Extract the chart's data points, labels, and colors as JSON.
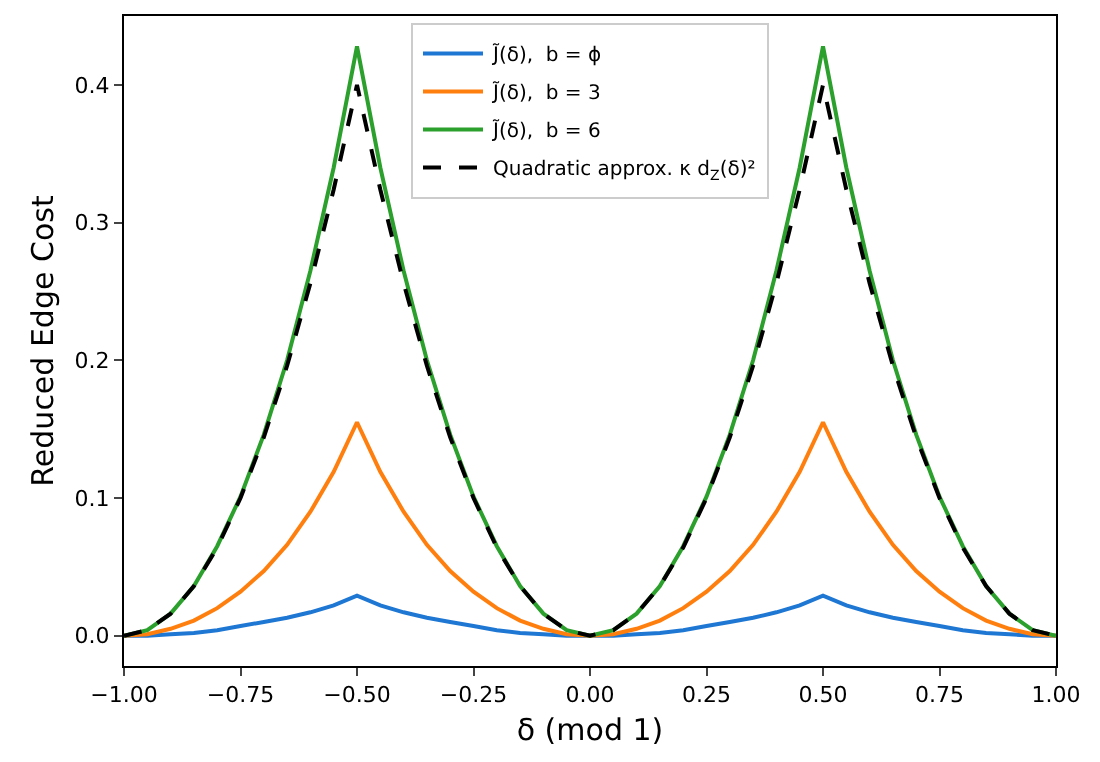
{
  "chart_data": {
    "type": "line",
    "xlabel": "δ (mod 1)",
    "ylabel": "Reduced Edge Cost",
    "x": [
      -1.0,
      -0.95,
      -0.9,
      -0.85,
      -0.8,
      -0.75,
      -0.7,
      -0.65,
      -0.6,
      -0.55,
      -0.5,
      -0.45,
      -0.4,
      -0.35,
      -0.3,
      -0.25,
      -0.2,
      -0.15,
      -0.1,
      -0.05,
      0.0,
      0.05,
      0.1,
      0.15,
      0.2,
      0.25,
      0.3,
      0.35,
      0.4,
      0.45,
      0.5,
      0.55,
      0.6,
      0.65,
      0.7,
      0.75,
      0.8,
      0.85,
      0.9,
      0.95,
      1.0
    ],
    "series": [
      {
        "name": "J̃(δ),  b = ϕ",
        "color": "#1f77d4",
        "values": [
          0,
          0,
          0.001,
          0.002,
          0.004,
          0.007,
          0.01,
          0.013,
          0.017,
          0.022,
          0.029,
          0.022,
          0.017,
          0.013,
          0.01,
          0.007,
          0.004,
          0.002,
          0.001,
          0,
          0,
          0,
          0.001,
          0.002,
          0.004,
          0.007,
          0.01,
          0.013,
          0.017,
          0.022,
          0.029,
          0.022,
          0.017,
          0.013,
          0.01,
          0.007,
          0.004,
          0.002,
          0.001,
          0,
          0
        ]
      },
      {
        "name": "J̃(δ),  b = 3",
        "color": "#ff7f0e",
        "values": [
          0,
          0.001,
          0.005,
          0.011,
          0.02,
          0.032,
          0.047,
          0.066,
          0.09,
          0.119,
          0.155,
          0.119,
          0.09,
          0.066,
          0.047,
          0.032,
          0.02,
          0.011,
          0.005,
          0.001,
          0,
          0.001,
          0.005,
          0.011,
          0.02,
          0.032,
          0.047,
          0.066,
          0.09,
          0.119,
          0.155,
          0.119,
          0.09,
          0.066,
          0.047,
          0.032,
          0.02,
          0.011,
          0.005,
          0.001,
          0
        ]
      },
      {
        "name": "J̃(δ),  b = 6",
        "color": "#2ca02c",
        "values": [
          0,
          0.004,
          0.016,
          0.036,
          0.065,
          0.101,
          0.146,
          0.2,
          0.265,
          0.34,
          0.428,
          0.34,
          0.265,
          0.2,
          0.146,
          0.101,
          0.065,
          0.036,
          0.016,
          0.004,
          0,
          0.004,
          0.016,
          0.036,
          0.065,
          0.101,
          0.146,
          0.2,
          0.265,
          0.34,
          0.428,
          0.34,
          0.265,
          0.2,
          0.146,
          0.101,
          0.065,
          0.036,
          0.016,
          0.004,
          0
        ]
      },
      {
        "name": "Quadratic approx. κ d$_{Z}$(δ)²",
        "color": "#000000",
        "line_style": "dashed",
        "values": [
          0,
          0.004,
          0.016,
          0.036,
          0.064,
          0.1,
          0.144,
          0.196,
          0.256,
          0.324,
          0.4,
          0.324,
          0.256,
          0.196,
          0.144,
          0.1,
          0.064,
          0.036,
          0.016,
          0.004,
          0,
          0.004,
          0.016,
          0.036,
          0.064,
          0.1,
          0.144,
          0.196,
          0.256,
          0.324,
          0.4,
          0.324,
          0.256,
          0.196,
          0.144,
          0.1,
          0.064,
          0.036,
          0.016,
          0.004,
          0
        ]
      }
    ],
    "xlim": [
      -1.0,
      1.0
    ],
    "xticks": [
      {
        "value": -1.0,
        "label": "−1.00"
      },
      {
        "value": -0.75,
        "label": "−0.75"
      },
      {
        "value": -0.5,
        "label": "−0.50"
      },
      {
        "value": -0.25,
        "label": "−0.25"
      },
      {
        "value": 0.0,
        "label": "0.00"
      },
      {
        "value": 0.25,
        "label": "0.25"
      },
      {
        "value": 0.5,
        "label": "0.50"
      },
      {
        "value": 0.75,
        "label": "0.75"
      },
      {
        "value": 1.0,
        "label": "1.00"
      }
    ],
    "ylim": [
      -0.022,
      0.45
    ],
    "yticks": [
      {
        "value": 0,
        "label": "0.0"
      },
      {
        "value": 0.1,
        "label": "0.1"
      },
      {
        "value": 0.2,
        "label": "0.2"
      },
      {
        "value": 0.3,
        "label": "0.3"
      },
      {
        "value": 0.4,
        "label": "0.4"
      }
    ],
    "legend": "top",
    "marker": "none",
    "line_style": "solid"
  }
}
